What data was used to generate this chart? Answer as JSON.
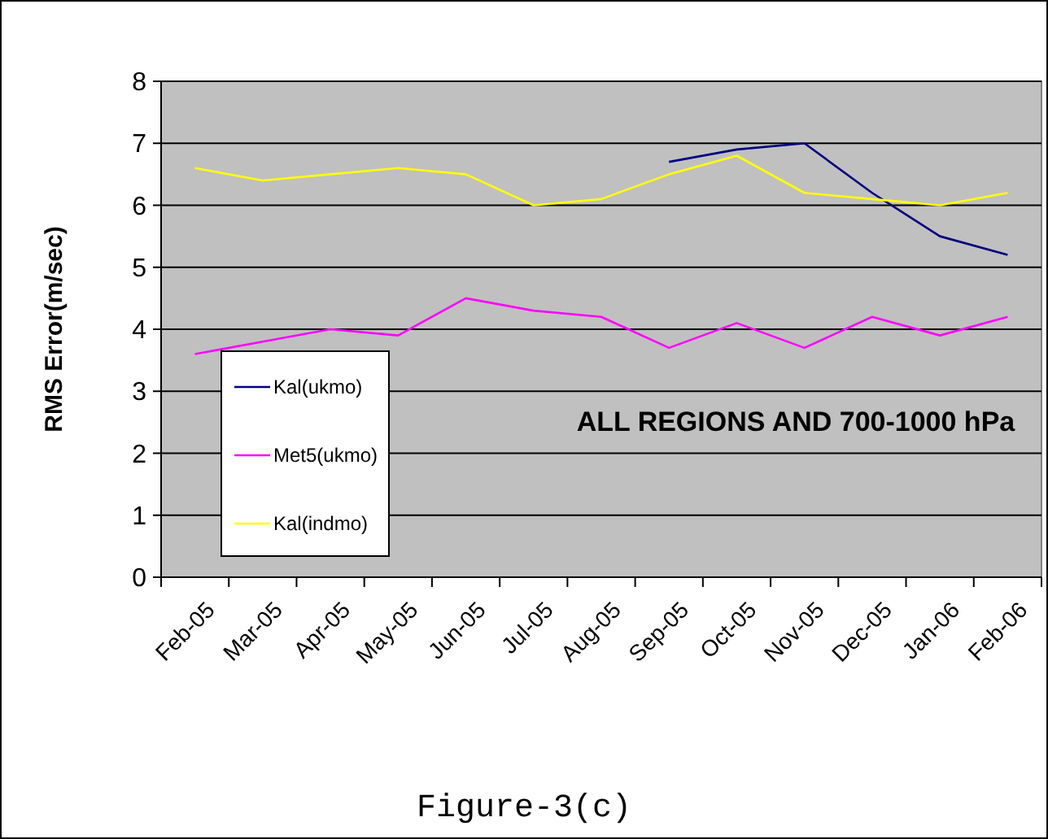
{
  "chart_data": {
    "type": "line",
    "ylabel": "RMS Error(m/sec)",
    "categories": [
      "Feb-05",
      "Mar-05",
      "Apr-05",
      "May-05",
      "Jun-05",
      "Jul-05",
      "Aug-05",
      "Sep-05",
      "Oct-05",
      "Nov-05",
      "Dec-05",
      "Jan-06",
      "Feb-06"
    ],
    "series": [
      {
        "name": "Kal(ukmo)",
        "color": "#000080",
        "values": [
          null,
          null,
          null,
          null,
          null,
          null,
          null,
          6.7,
          6.9,
          7.0,
          6.2,
          5.5,
          5.2
        ]
      },
      {
        "name": "Met5(ukmo)",
        "color": "#ff00ff",
        "values": [
          3.6,
          3.8,
          4.0,
          3.9,
          4.5,
          4.3,
          4.2,
          3.7,
          4.1,
          3.7,
          4.2,
          3.9,
          4.2
        ]
      },
      {
        "name": "Kal(indmo)",
        "color": "#ffff00",
        "values": [
          6.6,
          6.4,
          6.5,
          6.6,
          6.5,
          6.0,
          6.1,
          6.5,
          6.8,
          6.2,
          6.1,
          6.0,
          6.2
        ]
      }
    ],
    "ylim": [
      0,
      8
    ],
    "yticks": [
      0,
      1,
      2,
      3,
      4,
      5,
      6,
      7,
      8
    ],
    "grid": "y",
    "legend": "left",
    "marker": "none",
    "annotations": [
      "ALL REGIONS AND 700-1000 hPa",
      "Figure-3(c)"
    ]
  }
}
